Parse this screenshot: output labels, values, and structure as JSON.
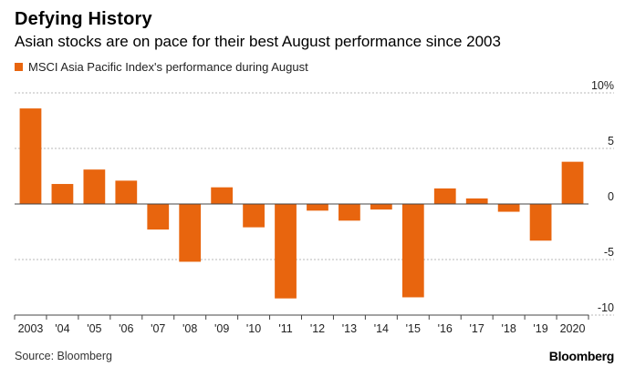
{
  "header": {
    "title": "Defying History",
    "subtitle": "Asian stocks are on pace for their best August performance since 2003"
  },
  "footer": {
    "source": "Source: Bloomberg",
    "brand": "Bloomberg"
  },
  "colors": {
    "bar": "#e8650e",
    "grid": "#b8b8b8",
    "axis": "#444444"
  },
  "chart_data": {
    "type": "bar",
    "title": "Defying History",
    "subtitle": "Asian stocks are on pace for their best August performance since 2003",
    "categories": [
      "2003",
      "'04",
      "'05",
      "'06",
      "'07",
      "'08",
      "'09",
      "'10",
      "'11",
      "'12",
      "'13",
      "'14",
      "'15",
      "'16",
      "'17",
      "'18",
      "'19",
      "2020"
    ],
    "series": [
      {
        "name": "MSCI Asia Pacific Index's performance during August",
        "values": [
          8.6,
          1.8,
          3.1,
          2.1,
          -2.3,
          -5.2,
          1.5,
          -2.1,
          -8.5,
          -0.6,
          -1.5,
          -0.5,
          -8.4,
          1.4,
          0.5,
          -0.7,
          -3.3,
          3.8
        ]
      }
    ],
    "ylim": [
      -10,
      10
    ],
    "y_ticks": [
      10,
      5,
      0,
      -5,
      -10
    ],
    "y_tick_labels": [
      "10%",
      "5",
      "0",
      "-5",
      "-10"
    ],
    "grid": true,
    "legend_position": "top-left"
  }
}
